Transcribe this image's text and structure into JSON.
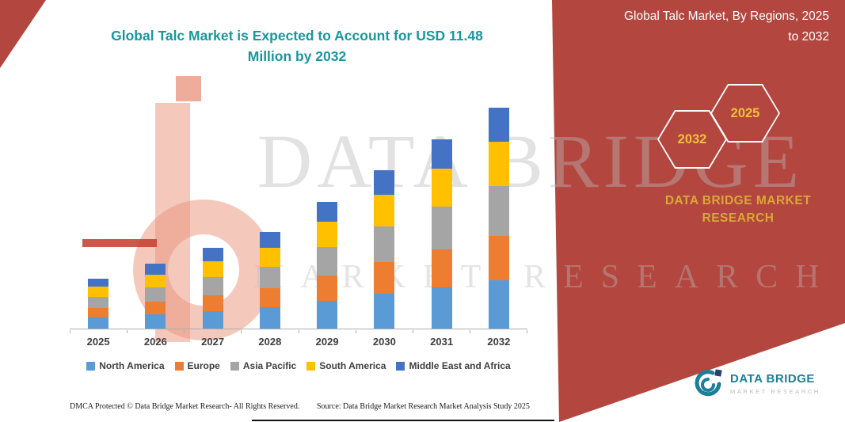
{
  "title": {
    "line1": "Global Talc Market is Expected to Account for USD 11.48",
    "line2": "Million by 2032"
  },
  "ribbon": {
    "heading_line1": "Global Talc Market, By Regions, 2025",
    "heading_line2": "to 2032",
    "hexagon_left": "2032",
    "hexagon_right": "2025",
    "brand_line1": "DATA BRIDGE MARKET",
    "brand_line2": "RESEARCH"
  },
  "watermark": {
    "line1": "DATA BRIDGE",
    "line2": "MARKET RESEARCH"
  },
  "logo": {
    "title": "DATA BRIDGE",
    "subtitle": "MARKET RESEARCH"
  },
  "footer": {
    "dmca": "DMCA Protected © Data Bridge Market Research- All Rights Reserved.",
    "source": "Source: Data Bridge Market Research Market Analysis Study 2025"
  },
  "colors": {
    "ribbon_red": "#B3463E",
    "title_teal": "#16989E",
    "gold": "#F0C23F",
    "brand_gold": "#D9A838",
    "logo_teal": "#1B7F98"
  },
  "chart_data": {
    "type": "bar",
    "stacked": true,
    "title": "Global Talc Market is Expected to Account for USD 11.48 Million by 2032",
    "categories": [
      "2025",
      "2026",
      "2027",
      "2028",
      "2029",
      "2030",
      "2031",
      "2032"
    ],
    "series": [
      {
        "name": "North America",
        "color": "#5B9BD5",
        "values": [
          14,
          18,
          22,
          27,
          35,
          44,
          52,
          61
        ]
      },
      {
        "name": "Europe",
        "color": "#ED7D31",
        "values": [
          12,
          16,
          20,
          24,
          32,
          40,
          48,
          56
        ]
      },
      {
        "name": "Asia Pacific",
        "color": "#A5A5A5",
        "values": [
          14,
          18,
          23,
          27,
          36,
          45,
          54,
          63
        ]
      },
      {
        "name": "South America",
        "color": "#FFC000",
        "values": [
          13,
          16,
          20,
          24,
          32,
          40,
          48,
          56
        ]
      },
      {
        "name": "Middle East and Africa",
        "color": "#4472C4",
        "values": [
          10,
          14,
          17,
          20,
          25,
          31,
          37,
          43
        ]
      }
    ],
    "totals": [
      63,
      82,
      102,
      122,
      160,
      200,
      239,
      279
    ],
    "value_note": "relative stacked heights; no y-axis scale shown in figure",
    "xlabel": "",
    "ylabel": "",
    "ylim": [
      0,
      297
    ],
    "grid": false,
    "legend_position": "bottom"
  }
}
